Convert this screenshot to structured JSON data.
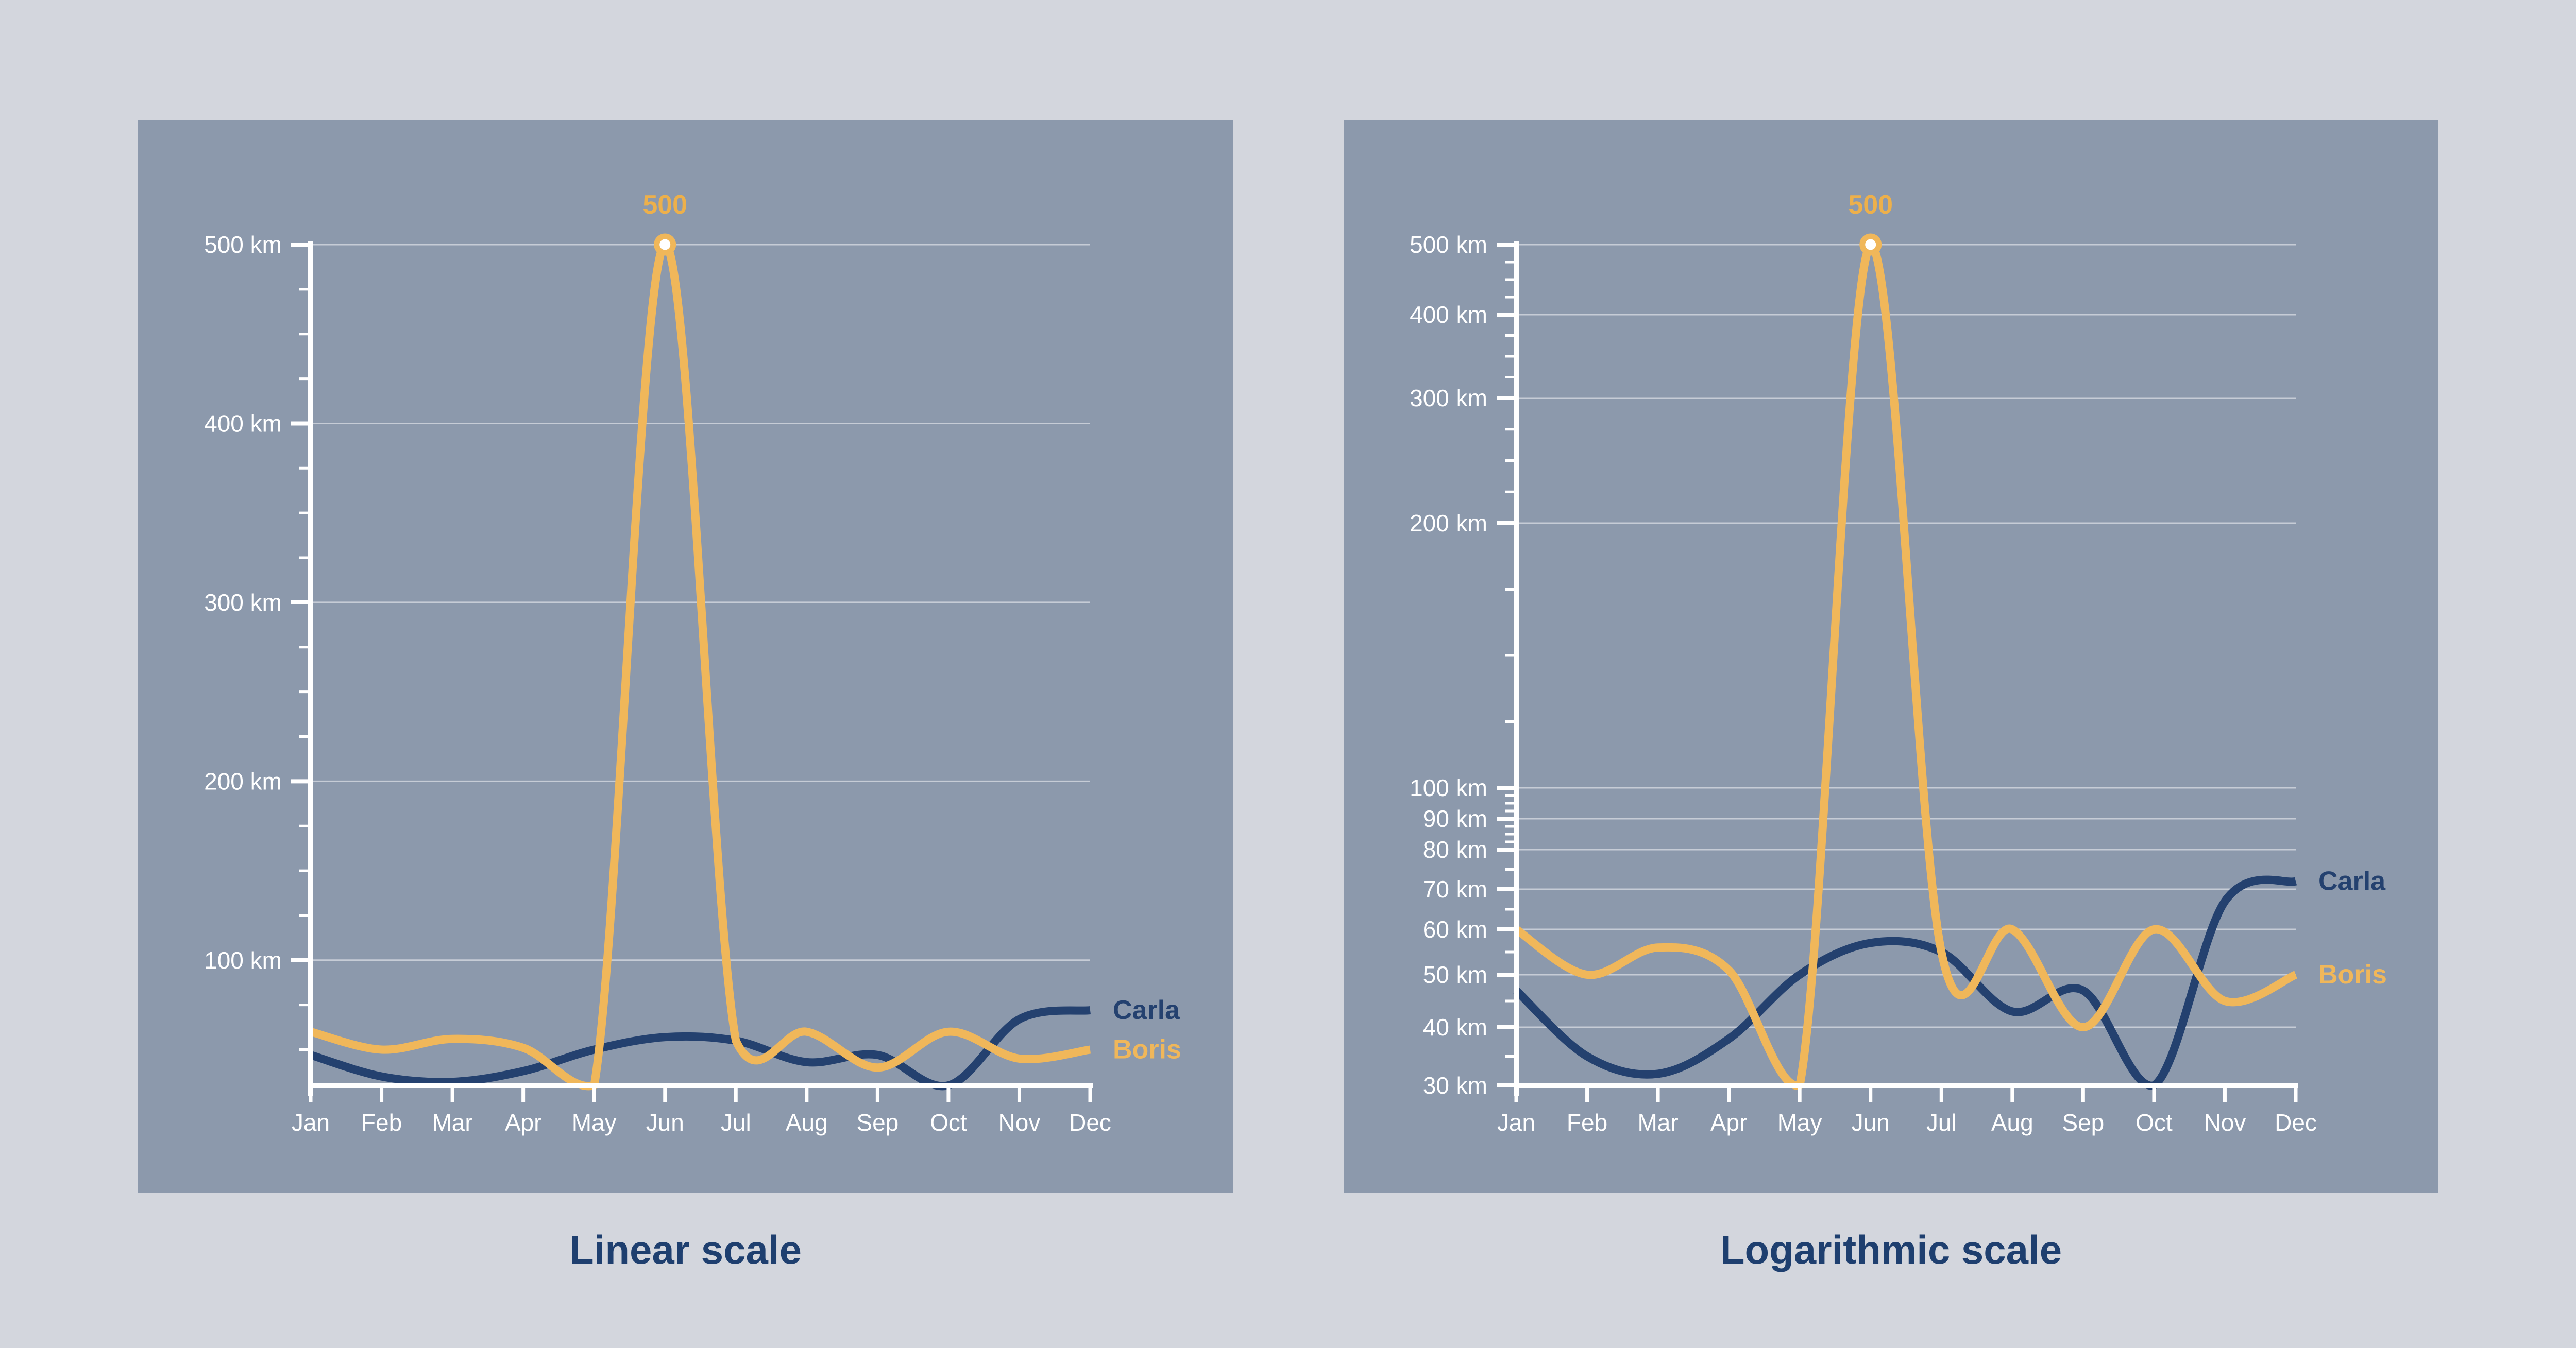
{
  "page": {
    "background": "#d3d6dd",
    "panel_background": "#8c99ac",
    "axis_color": "#ffffff",
    "grid_color": "rgba(255,255,255,0.5)",
    "title_color": "#1e3f6f"
  },
  "chart_data": {
    "type": "line",
    "x": [
      "Jan",
      "Feb",
      "Mar",
      "Apr",
      "May",
      "Jun",
      "Jul",
      "Aug",
      "Sep",
      "Oct",
      "Nov",
      "Dec"
    ],
    "unit": "km",
    "series": [
      {
        "name": "Carla",
        "color": "#24416f",
        "values": [
          47,
          35,
          32,
          38,
          50,
          57,
          55,
          43,
          47,
          30,
          67,
          72
        ]
      },
      {
        "name": "Boris",
        "color": "#f0b75a",
        "values": [
          60,
          50,
          56,
          51,
          30,
          500,
          55,
          60,
          40,
          60,
          45,
          50
        ]
      }
    ],
    "annotation": {
      "text": "500",
      "series": "Boris",
      "month": "Jun",
      "value": 500,
      "color": "#edb04b",
      "marker_fill": "#ffffff"
    },
    "grid": "horizontal",
    "legend_position": "line-end",
    "charts": [
      {
        "title": "Linear scale",
        "yscale": "linear",
        "ylim": [
          30,
          500
        ],
        "y_major": [
          {
            "value": 100,
            "label": "100 km"
          },
          {
            "value": 200,
            "label": "200 km"
          },
          {
            "value": 300,
            "label": "300 km"
          },
          {
            "value": 400,
            "label": "400 km"
          },
          {
            "value": 500,
            "label": "500 km"
          }
        ],
        "y_minor": [
          50,
          75,
          125,
          150,
          175,
          225,
          250,
          275,
          325,
          350,
          375,
          425,
          450,
          475
        ]
      },
      {
        "title": "Logarithmic scale",
        "yscale": "log",
        "ylim": [
          30,
          500
        ],
        "y_major": [
          {
            "value": 30,
            "label": "30 km"
          },
          {
            "value": 40,
            "label": "40 km"
          },
          {
            "value": 50,
            "label": "50 km"
          },
          {
            "value": 60,
            "label": "60 km"
          },
          {
            "value": 70,
            "label": "70 km"
          },
          {
            "value": 80,
            "label": "80 km"
          },
          {
            "value": 90,
            "label": "90 km"
          },
          {
            "value": 100,
            "label": "100 km"
          },
          {
            "value": 200,
            "label": "200 km"
          },
          {
            "value": 300,
            "label": "300 km"
          },
          {
            "value": 400,
            "label": "400 km"
          },
          {
            "value": 500,
            "label": "500 km"
          }
        ],
        "y_minor": [
          35,
          45,
          55,
          65,
          75,
          82.5,
          85,
          87.5,
          92.5,
          95,
          97.5,
          125,
          150,
          175,
          225,
          250,
          275,
          325,
          350,
          375,
          425,
          450,
          475
        ]
      }
    ]
  }
}
